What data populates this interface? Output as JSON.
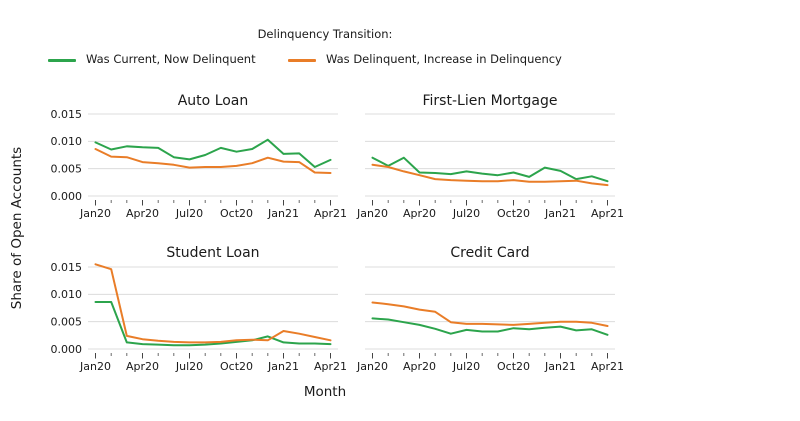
{
  "legend": {
    "title": "Delinquency Transition:",
    "items": [
      {
        "label": "Was Current, Now Delinquent",
        "color": "#2ca44c"
      },
      {
        "label": "Was Delinquent, Increase in Delinquency",
        "color": "#e97d28"
      }
    ]
  },
  "axes": {
    "x_label": "Month",
    "y_label": "Share of Open Accounts"
  },
  "chart_data": {
    "type": "line",
    "grid": true,
    "legend_position": "top",
    "categories": [
      "Jan20",
      "Feb20",
      "Mar20",
      "Apr20",
      "May20",
      "Jun20",
      "Jul20",
      "Aug20",
      "Sep20",
      "Oct20",
      "Nov20",
      "Dec20",
      "Jan21",
      "Feb21",
      "Mar21",
      "Apr21"
    ],
    "major_tick_indices": [
      0,
      3,
      6,
      9,
      12,
      15
    ],
    "ylim": [
      0,
      0.015
    ],
    "yticks": [
      {
        "label": "0.000",
        "value": 0.0
      },
      {
        "label": "0.005",
        "value": 0.005
      },
      {
        "label": "0.010",
        "value": 0.01
      },
      {
        "label": "0.015",
        "value": 0.015
      }
    ],
    "subplots": [
      {
        "title": "Auto Loan",
        "series": [
          {
            "name": "Was Current, Now Delinquent",
            "color": "#2ca44c",
            "values": [
              0.0098,
              0.0085,
              0.0091,
              0.0089,
              0.0088,
              0.0071,
              0.0067,
              0.0075,
              0.0088,
              0.0081,
              0.0086,
              0.0103,
              0.0077,
              0.0078,
              0.0053,
              0.0066
            ]
          },
          {
            "name": "Was Delinquent, Increase in Delinquency",
            "color": "#e97d28",
            "values": [
              0.0086,
              0.0072,
              0.0071,
              0.0062,
              0.006,
              0.0057,
              0.0052,
              0.0053,
              0.0053,
              0.0055,
              0.006,
              0.007,
              0.0063,
              0.0062,
              0.0043,
              0.0042
            ]
          }
        ]
      },
      {
        "title": "First-Lien Mortgage",
        "series": [
          {
            "name": "Was Current, Now Delinquent",
            "color": "#2ca44c",
            "values": [
              0.007,
              0.0055,
              0.007,
              0.0043,
              0.0042,
              0.004,
              0.0045,
              0.0041,
              0.0038,
              0.0043,
              0.0035,
              0.0052,
              0.0046,
              0.0031,
              0.0036,
              0.0027
            ]
          },
          {
            "name": "Was Delinquent, Increase in Delinquency",
            "color": "#e97d28",
            "values": [
              0.0057,
              0.0053,
              0.0045,
              0.0038,
              0.0031,
              0.0029,
              0.0028,
              0.0027,
              0.0027,
              0.0029,
              0.0026,
              0.0026,
              0.0027,
              0.0028,
              0.0023,
              0.002
            ]
          }
        ]
      },
      {
        "title": "Student Loan",
        "series": [
          {
            "name": "Was Current, Now Delinquent",
            "color": "#2ca44c",
            "values": [
              0.0086,
              0.0086,
              0.0012,
              0.0009,
              0.0008,
              0.0007,
              0.0007,
              0.0008,
              0.001,
              0.0013,
              0.0016,
              0.0023,
              0.0012,
              0.001,
              0.001,
              0.0009
            ]
          },
          {
            "name": "Was Delinquent, Increase in Delinquency",
            "color": "#e97d28",
            "values": [
              0.0155,
              0.0146,
              0.0024,
              0.0018,
              0.0015,
              0.0013,
              0.0012,
              0.0012,
              0.0013,
              0.0016,
              0.0017,
              0.0016,
              0.0033,
              0.0028,
              0.0022,
              0.0016
            ]
          }
        ]
      },
      {
        "title": "Credit Card",
        "series": [
          {
            "name": "Was Current, Now Delinquent",
            "color": "#2ca44c",
            "values": [
              0.0056,
              0.0054,
              0.0049,
              0.0044,
              0.0037,
              0.0028,
              0.0035,
              0.0032,
              0.0032,
              0.0038,
              0.0036,
              0.0039,
              0.0041,
              0.0034,
              0.0036,
              0.0026
            ]
          },
          {
            "name": "Was Delinquent, Increase in Delinquency",
            "color": "#e97d28",
            "values": [
              0.0085,
              0.0082,
              0.0078,
              0.0072,
              0.0068,
              0.0049,
              0.0046,
              0.0046,
              0.0045,
              0.0044,
              0.0046,
              0.0048,
              0.005,
              0.005,
              0.0048,
              0.0042
            ]
          }
        ]
      }
    ]
  }
}
